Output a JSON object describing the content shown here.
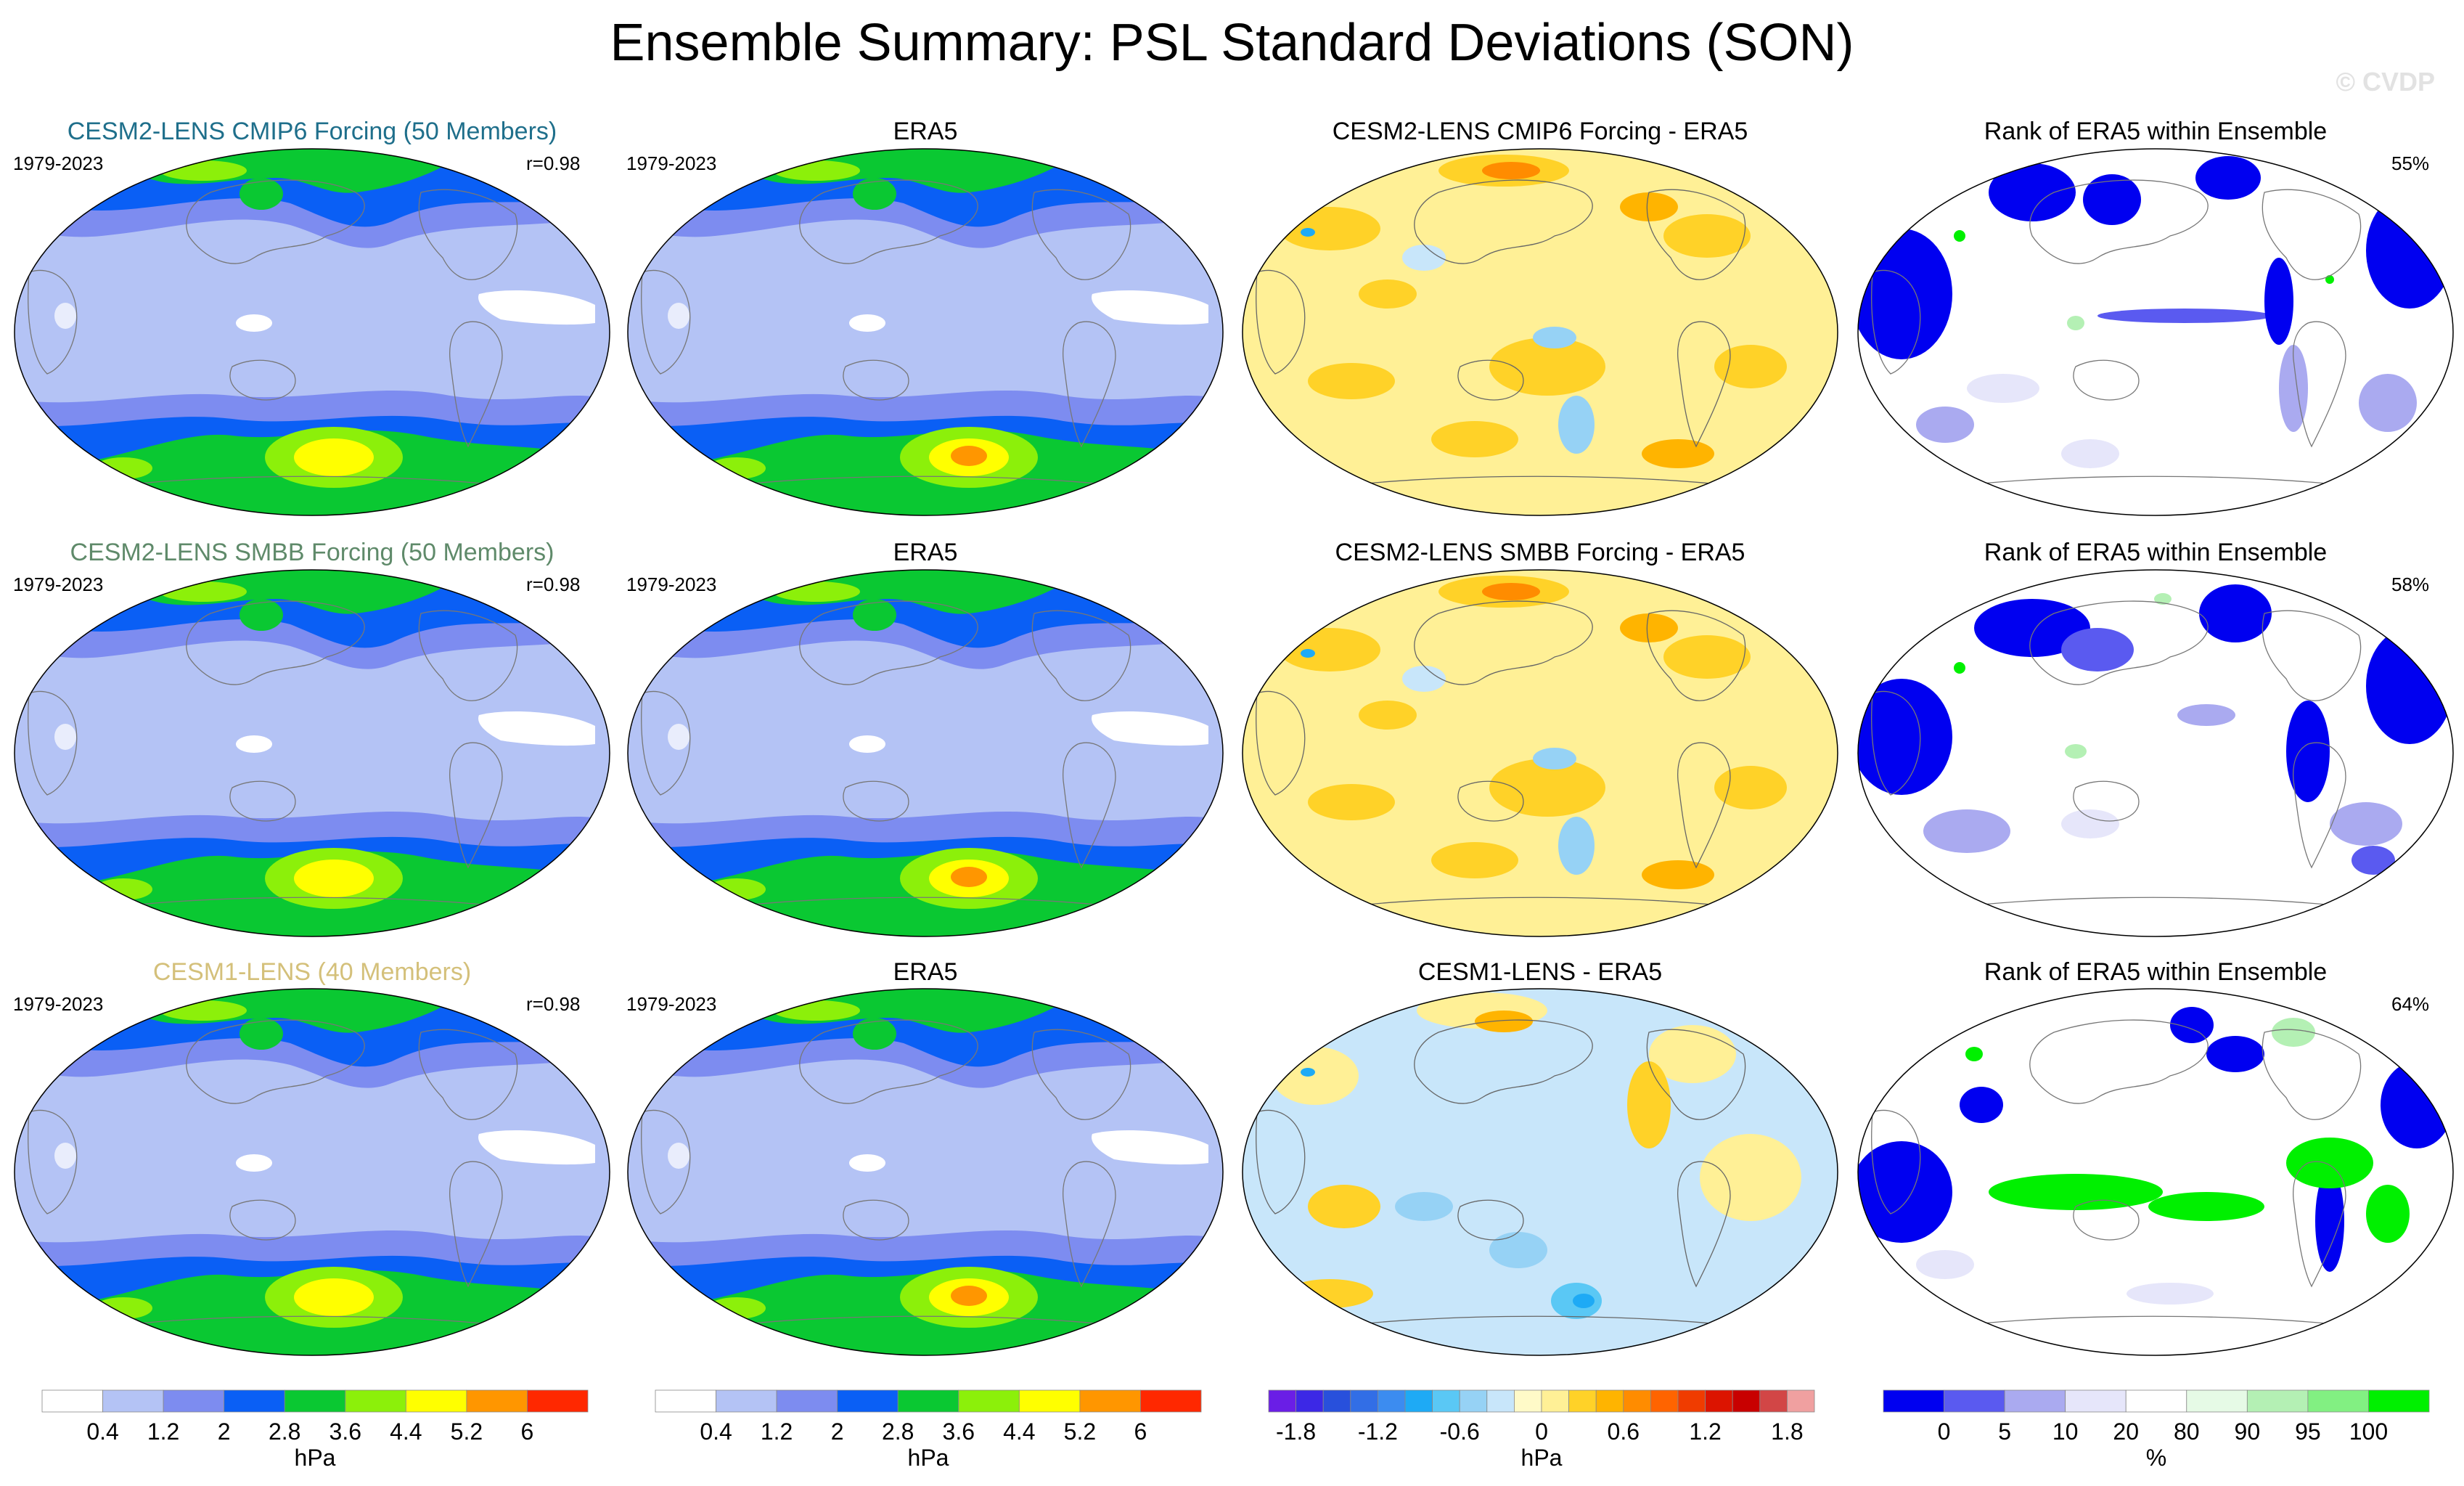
{
  "title": "Ensemble Summary: PSL Standard Deviations (SON)",
  "watermark": "© CVDP",
  "rows": [
    {
      "model_title": "CESM2-LENS CMIP6 Forcing (50 Members)",
      "model_title_color": "#1f6f8b",
      "model_period": "1979-2023",
      "corr": "r=0.98",
      "obs_title": "ERA5",
      "obs_period": "1979-2023",
      "diff_title": "CESM2-LENS CMIP6 Forcing - ERA5",
      "rank_title": "Rank of ERA5 within Ensemble",
      "rank_pct": "55%"
    },
    {
      "model_title": "CESM2-LENS SMBB Forcing (50 Members)",
      "model_title_color": "#5f8a6a",
      "model_period": "1979-2023",
      "corr": "r=0.98",
      "obs_title": "ERA5",
      "obs_period": "1979-2023",
      "diff_title": "CESM2-LENS SMBB Forcing - ERA5",
      "rank_title": "Rank of ERA5 within Ensemble",
      "rank_pct": "58%"
    },
    {
      "model_title": "CESM1-LENS (40 Members)",
      "model_title_color": "#d4c07a",
      "model_period": "1979-2023",
      "corr": "r=0.98",
      "obs_title": "ERA5",
      "obs_period": "1979-2023",
      "diff_title": "CESM1-LENS - ERA5",
      "rank_title": "Rank of ERA5 within Ensemble",
      "rank_pct": "64%"
    }
  ],
  "chart_data": {
    "type": "heatmap",
    "title": "Ensemble Summary: PSL Standard Deviations (SON)",
    "projection": "Robinson (global)",
    "colorbars": [
      {
        "name": "std",
        "unit": "hPa",
        "colors": [
          "#ffffff",
          "#b4c3f5",
          "#7d8cf0",
          "#0a5ff5",
          "#0ac832",
          "#8cf00a",
          "#ffff00",
          "#ff9600",
          "#ff2800"
        ],
        "tick_labels": [
          "0.4",
          "1.2",
          "2",
          "2.8",
          "3.6",
          "4.4",
          "5.2",
          "6"
        ]
      },
      {
        "name": "std",
        "unit": "hPa",
        "colors": [
          "#ffffff",
          "#b4c3f5",
          "#7d8cf0",
          "#0a5ff5",
          "#0ac832",
          "#8cf00a",
          "#ffff00",
          "#ff9600",
          "#ff2800"
        ],
        "tick_labels": [
          "0.4",
          "1.2",
          "2",
          "2.8",
          "3.6",
          "4.4",
          "5.2",
          "6"
        ]
      },
      {
        "name": "diff",
        "unit": "hPa",
        "colors": [
          "#6a1ee6",
          "#3c28e6",
          "#2850dc",
          "#326ee6",
          "#3c8cf0",
          "#1eaaf5",
          "#5ac8f5",
          "#96d2f5",
          "#c8e6fa",
          "#fffac8",
          "#fff096",
          "#ffd228",
          "#ffb400",
          "#ff8c00",
          "#ff6400",
          "#f03c00",
          "#dc1400",
          "#c80000",
          "#d24646",
          "#f0a0a0"
        ],
        "tick_labels": [
          "-1.8",
          "-1.2",
          "-0.6",
          "0",
          "0.6",
          "1.2",
          "1.8"
        ]
      },
      {
        "name": "rank",
        "unit": "%",
        "colors": [
          "#0000f0",
          "#5a5af0",
          "#aaaaf0",
          "#e6e6fa",
          "#ffffff",
          "#e6fae6",
          "#b4f0b4",
          "#82f082",
          "#00f000"
        ],
        "tick_labels": [
          "0",
          "5",
          "10",
          "20",
          "80",
          "90",
          "95",
          "100"
        ]
      }
    ]
  }
}
